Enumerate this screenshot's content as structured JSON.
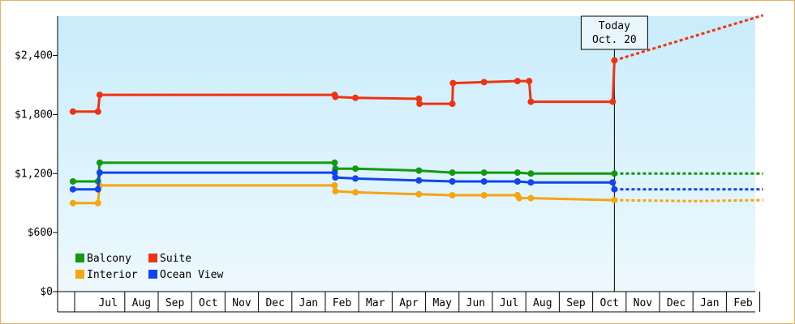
{
  "chart_data": {
    "type": "line",
    "title": "",
    "xlabel": "",
    "ylabel": "",
    "ylim": [
      0,
      2800
    ],
    "y_ticks": [
      {
        "value": 0,
        "label": "$0"
      },
      {
        "value": 600,
        "label": "$600"
      },
      {
        "value": 1200,
        "label": "$1,200"
      },
      {
        "value": 1800,
        "label": "$1,800"
      },
      {
        "value": 2400,
        "label": "$2,400"
      }
    ],
    "x_range": [
      0,
      20.6
    ],
    "x_ticks": [
      {
        "value": 1,
        "label": "Jul"
      },
      {
        "value": 2,
        "label": "Aug"
      },
      {
        "value": 3,
        "label": "Sep"
      },
      {
        "value": 4,
        "label": "Oct"
      },
      {
        "value": 5,
        "label": "Nov"
      },
      {
        "value": 6,
        "label": "Dec"
      },
      {
        "value": 7,
        "label": "Jan"
      },
      {
        "value": 8,
        "label": "Feb"
      },
      {
        "value": 9,
        "label": "Mar"
      },
      {
        "value": 10,
        "label": "Apr"
      },
      {
        "value": 11,
        "label": "May"
      },
      {
        "value": 12,
        "label": "Jun"
      },
      {
        "value": 13,
        "label": "Jul"
      },
      {
        "value": 14,
        "label": "Aug"
      },
      {
        "value": 15,
        "label": "Sep"
      },
      {
        "value": 16,
        "label": "Oct"
      },
      {
        "value": 17,
        "label": "Nov"
      },
      {
        "value": 18,
        "label": "Dec"
      },
      {
        "value": 19,
        "label": "Jan"
      },
      {
        "value": 20,
        "label": "Feb"
      }
    ],
    "today": {
      "x": 16.15,
      "line1": "Today",
      "line2": "Oct. 20"
    },
    "legend_placement": "bottom-left",
    "grid": false,
    "series": [
      {
        "name": "Balcony",
        "color": "#119911",
        "points": [
          [
            -0.05,
            1120
          ],
          [
            0.7,
            1120
          ],
          [
            0.75,
            1310
          ],
          [
            7.78,
            1310
          ],
          [
            7.8,
            1250
          ],
          [
            8.4,
            1250
          ],
          [
            10.3,
            1230
          ],
          [
            11.3,
            1210
          ],
          [
            12.25,
            1210
          ],
          [
            13.25,
            1210
          ],
          [
            13.65,
            1200
          ],
          [
            16.15,
            1200
          ]
        ],
        "markers": [
          [
            -0.05,
            1120
          ],
          [
            0.7,
            1120
          ],
          [
            0.75,
            1310
          ],
          [
            7.78,
            1310
          ],
          [
            7.8,
            1250
          ],
          [
            8.4,
            1250
          ],
          [
            10.3,
            1230
          ],
          [
            11.3,
            1210
          ],
          [
            12.25,
            1210
          ],
          [
            13.25,
            1210
          ],
          [
            13.65,
            1200
          ],
          [
            16.15,
            1200
          ]
        ],
        "forecast": [
          [
            16.15,
            1200
          ],
          [
            20.6,
            1200
          ]
        ]
      },
      {
        "name": "Suite",
        "color": "#ee3311",
        "points": [
          [
            -0.05,
            1830
          ],
          [
            0.7,
            1830
          ],
          [
            0.75,
            2000
          ],
          [
            7.78,
            2000
          ],
          [
            7.8,
            1980
          ],
          [
            8.4,
            1970
          ],
          [
            10.3,
            1960
          ],
          [
            10.32,
            1910
          ],
          [
            11.3,
            1910
          ],
          [
            11.32,
            2120
          ],
          [
            12.25,
            2130
          ],
          [
            13.25,
            2140
          ],
          [
            13.6,
            2140
          ],
          [
            13.65,
            1930
          ],
          [
            16.1,
            1930
          ],
          [
            16.15,
            2350
          ]
        ],
        "markers": [
          [
            -0.05,
            1830
          ],
          [
            0.7,
            1830
          ],
          [
            0.75,
            2000
          ],
          [
            7.78,
            2000
          ],
          [
            7.8,
            1980
          ],
          [
            8.4,
            1970
          ],
          [
            10.3,
            1960
          ],
          [
            10.32,
            1910
          ],
          [
            11.3,
            1910
          ],
          [
            11.32,
            2120
          ],
          [
            12.25,
            2130
          ],
          [
            13.25,
            2140
          ],
          [
            13.6,
            2140
          ],
          [
            13.65,
            1930
          ],
          [
            16.1,
            1930
          ],
          [
            16.15,
            2350
          ]
        ],
        "forecast": [
          [
            16.15,
            2350
          ],
          [
            20.6,
            2810
          ]
        ]
      },
      {
        "name": "Interior",
        "color": "#f5a511",
        "points": [
          [
            -0.05,
            900
          ],
          [
            0.7,
            900
          ],
          [
            0.75,
            1080
          ],
          [
            7.78,
            1080
          ],
          [
            7.8,
            1020
          ],
          [
            8.4,
            1010
          ],
          [
            10.3,
            990
          ],
          [
            11.3,
            980
          ],
          [
            12.25,
            980
          ],
          [
            13.25,
            980
          ],
          [
            13.3,
            950
          ],
          [
            13.65,
            950
          ],
          [
            16.15,
            930
          ]
        ],
        "markers": [
          [
            -0.05,
            900
          ],
          [
            0.7,
            900
          ],
          [
            0.75,
            1080
          ],
          [
            7.78,
            1080
          ],
          [
            7.8,
            1020
          ],
          [
            8.4,
            1010
          ],
          [
            10.3,
            990
          ],
          [
            11.3,
            980
          ],
          [
            12.25,
            980
          ],
          [
            13.25,
            980
          ],
          [
            13.3,
            950
          ],
          [
            13.65,
            950
          ],
          [
            16.15,
            930
          ]
        ],
        "forecast": [
          [
            16.15,
            930
          ],
          [
            18.5,
            920
          ],
          [
            20.6,
            930
          ]
        ]
      },
      {
        "name": "Ocean View",
        "color": "#1144ee",
        "points": [
          [
            -0.05,
            1040
          ],
          [
            0.7,
            1040
          ],
          [
            0.75,
            1210
          ],
          [
            7.78,
            1210
          ],
          [
            7.8,
            1160
          ],
          [
            8.4,
            1150
          ],
          [
            10.3,
            1130
          ],
          [
            11.3,
            1120
          ],
          [
            12.25,
            1120
          ],
          [
            13.25,
            1120
          ],
          [
            13.65,
            1110
          ],
          [
            16.1,
            1110
          ],
          [
            16.15,
            1040
          ]
        ],
        "markers": [
          [
            -0.05,
            1040
          ],
          [
            0.7,
            1040
          ],
          [
            0.75,
            1210
          ],
          [
            7.78,
            1210
          ],
          [
            7.8,
            1160
          ],
          [
            8.4,
            1150
          ],
          [
            10.3,
            1130
          ],
          [
            11.3,
            1120
          ],
          [
            12.25,
            1120
          ],
          [
            13.25,
            1120
          ],
          [
            13.65,
            1110
          ],
          [
            16.1,
            1110
          ],
          [
            16.15,
            1040
          ]
        ],
        "forecast": [
          [
            16.15,
            1040
          ],
          [
            20.6,
            1040
          ]
        ]
      }
    ]
  }
}
